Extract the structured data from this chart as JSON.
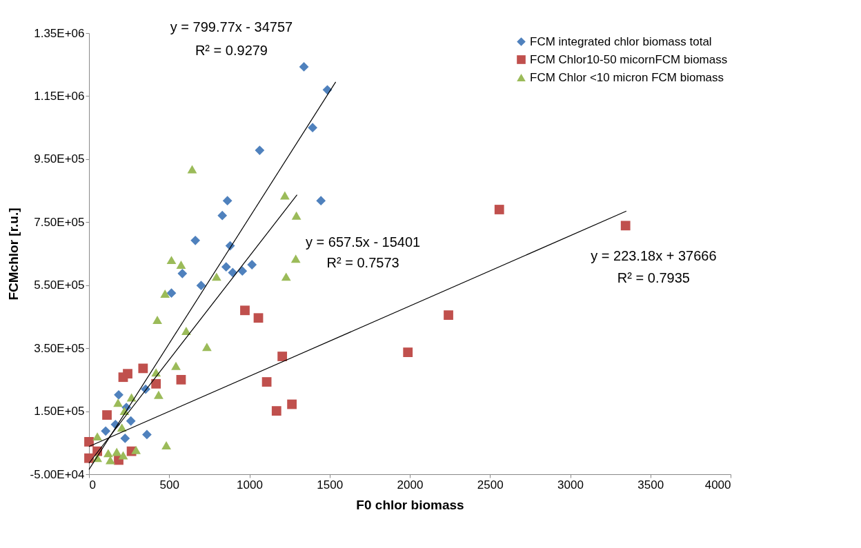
{
  "chart_data": {
    "type": "scatter",
    "xlabel": "F0 chlor biomass",
    "ylabel": "FCMchlor [r.u.]",
    "xlim": [
      0,
      4000
    ],
    "xticks": [
      0,
      500,
      1000,
      1500,
      2000,
      2500,
      3000,
      3500,
      4000
    ],
    "ylim": [
      -50000,
      1350000
    ],
    "yticks": [
      {
        "value": -50000,
        "label": "-5.00E+04"
      },
      {
        "value": 150000,
        "label": "1.50E+05"
      },
      {
        "value": 350000,
        "label": "3.50E+05"
      },
      {
        "value": 550000,
        "label": "5.50E+05"
      },
      {
        "value": 750000,
        "label": "7.50E+05"
      },
      {
        "value": 950000,
        "label": "9.50E+05"
      },
      {
        "value": 1150000,
        "label": "1.15E+06"
      },
      {
        "value": 1350000,
        "label": "1.35E+06"
      }
    ],
    "grid": false,
    "legend": "top right",
    "series": [
      {
        "name": "FCM integrated chlor biomass total",
        "marker": "diamond",
        "color": "#4f81bd",
        "x": [
          1340,
          1486,
          1394,
          1064,
          1446,
          863,
          831,
          663,
          880,
          855,
          1016,
          896,
          956,
          582,
          699,
          514,
          353,
          185,
          361,
          261,
          104,
          225,
          165,
          233
        ],
        "values": [
          1243000,
          1170000,
          1050000,
          978000,
          818000,
          818000,
          771000,
          692000,
          675000,
          608000,
          615000,
          590000,
          595000,
          587000,
          549000,
          525000,
          220000,
          202000,
          76000,
          119000,
          87000,
          64000,
          108000,
          162000
        ]
      },
      {
        "name": "FCM Chlor10-50 micornFCM biomass",
        "marker": "square",
        "color": "#c0504d",
        "x": [
          2558,
          3345,
          2241,
          1988,
          972,
          1056,
          1205,
          1108,
          1169,
          1265,
          337,
          241,
          213,
          574,
          418,
          112,
          0,
          0,
          185,
          265,
          52
        ],
        "values": [
          790000,
          739000,
          455000,
          337000,
          470000,
          446000,
          324000,
          243000,
          151000,
          172000,
          286000,
          269000,
          258000,
          250000,
          237000,
          138000,
          53000,
          1000,
          -5000,
          23000,
          23000
        ]
      },
      {
        "name": "FCM Chlor <10 micron FCM biomass",
        "marker": "triangle",
        "color": "#9bbb59",
        "x": [
          643,
          1221,
          1293,
          1289,
          1229,
          514,
          574,
          795,
          474,
          426,
          606,
          735,
          542,
          418,
          434,
          265,
          181,
          221,
          205,
          482,
          293,
          52,
          120,
          173,
          52,
          213,
          133
        ],
        "values": [
          918000,
          835000,
          771000,
          634000,
          577000,
          630000,
          615000,
          577000,
          523000,
          440000,
          405000,
          354000,
          294000,
          273000,
          202000,
          194000,
          177000,
          151000,
          98000,
          42000,
          27000,
          70000,
          17000,
          21000,
          2000,
          10000,
          -5000
        ]
      },
      {
        "type": "line",
        "color": "#000000",
        "x": [
          0,
          1538
        ],
        "values": [
          -35000,
          1195000
        ]
      },
      {
        "type": "line",
        "color": "#000000",
        "x": [
          0,
          1297
        ],
        "values": [
          -15000,
          837000
        ]
      },
      {
        "type": "line",
        "color": "#000000",
        "x": [
          0,
          3350
        ],
        "values": [
          38000,
          785000
        ]
      }
    ],
    "annotations": [
      "y = 799.77x - 34757",
      "R² = 0.9279",
      "y = 657.5x - 15401",
      "R² = 0.7573",
      "y = 223.18x + 37666",
      "R² = 0.7935"
    ]
  }
}
